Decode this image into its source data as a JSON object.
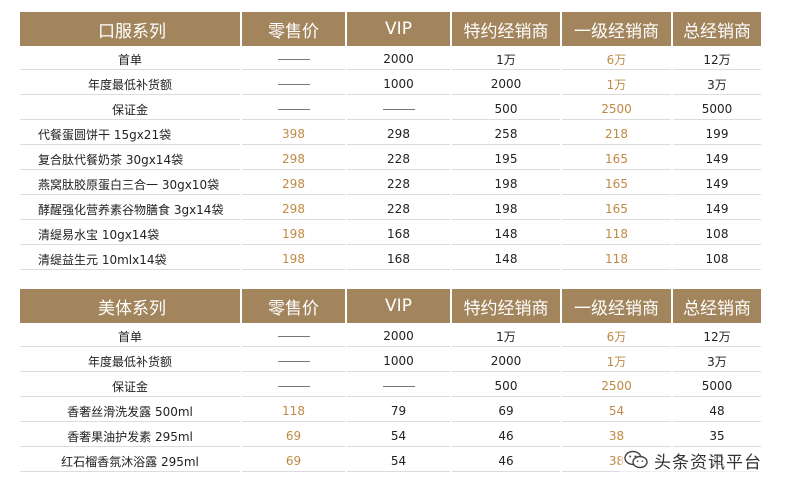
{
  "tables": [
    {
      "headers": [
        "口服系列",
        "零售价",
        "VIP",
        "特约经销商",
        "一级经销商",
        "总经销商"
      ],
      "rows": [
        {
          "name": "首单",
          "center": true,
          "cells": [
            "—",
            "2000",
            "1万",
            "6万",
            "12万"
          ]
        },
        {
          "name": "年度最低补货额",
          "center": true,
          "cells": [
            "—",
            "1000",
            "2000",
            "1万",
            "3万"
          ]
        },
        {
          "name": "保证金",
          "center": true,
          "cells": [
            "—",
            "—",
            "500",
            "2500",
            "5000"
          ]
        },
        {
          "name": "代餐蛋圆饼干 15gx21袋",
          "center": false,
          "cells": [
            "398",
            "298",
            "258",
            "218",
            "199"
          ]
        },
        {
          "name": "复合肽代餐奶茶 30gx14袋",
          "center": false,
          "cells": [
            "298",
            "228",
            "195",
            "165",
            "149"
          ]
        },
        {
          "name": "燕窝肽胶原蛋白三合一 30gx10袋",
          "center": false,
          "cells": [
            "298",
            "228",
            "198",
            "165",
            "149"
          ]
        },
        {
          "name": "酵醒强化营养素谷物膳食 3gx14袋",
          "center": false,
          "cells": [
            "298",
            "228",
            "198",
            "165",
            "149"
          ]
        },
        {
          "name": "清缇易水宝 10gx14袋",
          "center": false,
          "cells": [
            "198",
            "168",
            "148",
            "118",
            "108"
          ]
        },
        {
          "name": "清缇益生元 10mlx14袋",
          "center": false,
          "cells": [
            "198",
            "168",
            "148",
            "118",
            "108"
          ]
        }
      ]
    },
    {
      "headers": [
        "美体系列",
        "零售价",
        "VIP",
        "特约经销商",
        "一级经销商",
        "总经销商"
      ],
      "rows": [
        {
          "name": "首单",
          "center": true,
          "cells": [
            "—",
            "2000",
            "1万",
            "6万",
            "12万"
          ]
        },
        {
          "name": "年度最低补货额",
          "center": true,
          "cells": [
            "—",
            "1000",
            "2000",
            "1万",
            "3万"
          ]
        },
        {
          "name": "保证金",
          "center": true,
          "cells": [
            "—",
            "—",
            "500",
            "2500",
            "5000"
          ]
        },
        {
          "name": "香奢丝滑洗发露 500ml",
          "center": true,
          "cells": [
            "118",
            "79",
            "69",
            "54",
            "48"
          ]
        },
        {
          "name": "香奢果油护发素 295ml",
          "center": true,
          "cells": [
            "69",
            "54",
            "46",
            "38",
            "35"
          ]
        },
        {
          "name": "红石榴香氛沐浴露 295ml",
          "center": true,
          "cells": [
            "69",
            "54",
            "46",
            "38",
            "32"
          ]
        }
      ]
    }
  ],
  "colors": {
    "header_bg": "#a2855c",
    "gold_text": "#c08a45"
  },
  "watermark": {
    "icon": "wechat-icon",
    "text": "头条资讯平台"
  }
}
